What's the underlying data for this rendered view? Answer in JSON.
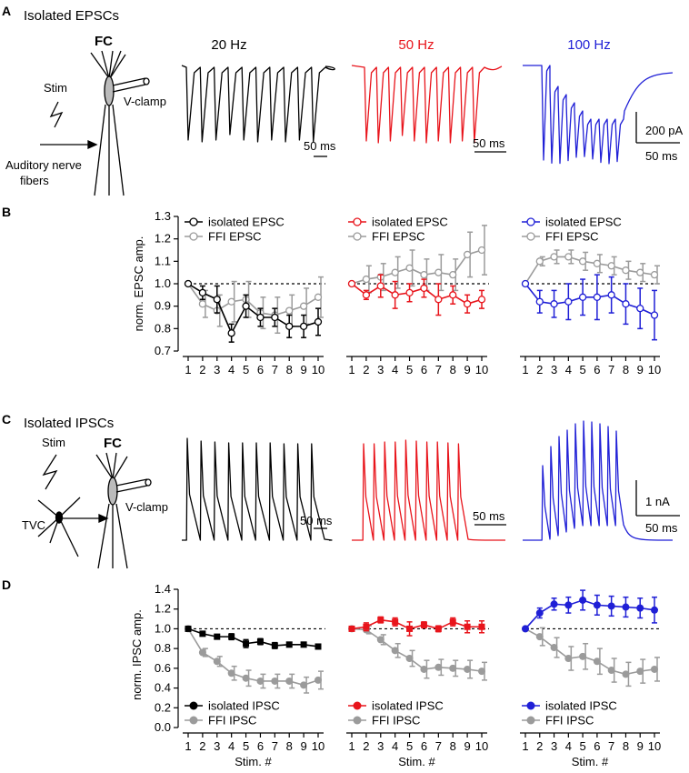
{
  "colors": {
    "black": "#000000",
    "red": "#e8141b",
    "blue": "#1f1fd6",
    "gray": "#9b9b9b",
    "dark": "#111111"
  },
  "panels": {
    "A": "A",
    "B": "B",
    "C": "C",
    "D": "D"
  },
  "panelA": {
    "title": "Isolated EPSCs",
    "fc_label": "FC",
    "stim_label": "Stim",
    "vclamp_label": "V-clamp",
    "input_label_line1": "Auditory nerve",
    "input_label_line2": "fibers",
    "traces": [
      {
        "label": "20 Hz",
        "color": "black",
        "pulses": 10,
        "scale_label": "50 ms"
      },
      {
        "label": "50 Hz",
        "color": "red",
        "pulses": 10,
        "scale_label": "50 ms"
      },
      {
        "label": "100 Hz",
        "color": "blue",
        "pulses": 10,
        "scale_label": "50 ms",
        "amp_scale_label": "200 pA"
      }
    ]
  },
  "panelC": {
    "title": "Isolated IPSCs",
    "fc_label": "FC",
    "stim_label": "Stim",
    "vclamp_label": "V-clamp",
    "input_label": "TVC",
    "traces": [
      {
        "color": "black",
        "pulses": 10,
        "scale_label": "50 ms"
      },
      {
        "color": "red",
        "pulses": 10,
        "scale_label": "50 ms"
      },
      {
        "color": "blue",
        "pulses": 10,
        "scale_label": "50 ms",
        "amp_scale_label": "1 nA"
      }
    ]
  },
  "chart_data": [
    {
      "panel": "B",
      "type": "line",
      "ylabel": "norm. EPSC amp.",
      "xlabel": "",
      "ylim": [
        0.7,
        1.3
      ],
      "yticks": [
        "0.7",
        "0.8",
        "0.9",
        "1.0",
        "1.1",
        "1.2",
        "1.3"
      ],
      "x": [
        "1",
        "2",
        "3",
        "4",
        "5",
        "6",
        "7",
        "8",
        "9",
        "10"
      ],
      "reference_line": 1.0,
      "groups": [
        {
          "frequency": "20 Hz",
          "color": "black",
          "marker": "open",
          "series": [
            {
              "name": "isolated EPSC",
              "values": [
                1.0,
                0.96,
                0.93,
                0.78,
                0.9,
                0.85,
                0.85,
                0.81,
                0.81,
                0.83
              ],
              "errors": [
                0,
                0.03,
                0.06,
                0.04,
                0.05,
                0.04,
                0.04,
                0.05,
                0.05,
                0.06
              ]
            },
            {
              "name": "FFI EPSC",
              "values": [
                1.0,
                0.91,
                0.88,
                0.92,
                0.93,
                0.87,
                0.86,
                0.88,
                0.9,
                0.94
              ],
              "errors": [
                0,
                0.06,
                0.07,
                0.09,
                0.08,
                0.07,
                0.08,
                0.07,
                0.08,
                0.09
              ]
            }
          ]
        },
        {
          "frequency": "50 Hz",
          "color": "red",
          "marker": "open",
          "series": [
            {
              "name": "isolated EPSC",
              "values": [
                1.0,
                0.95,
                0.99,
                0.95,
                0.96,
                0.98,
                0.93,
                0.95,
                0.91,
                0.93
              ],
              "errors": [
                0,
                0.02,
                0.05,
                0.06,
                0.04,
                0.04,
                0.07,
                0.04,
                0.04,
                0.04
              ]
            },
            {
              "name": "FFI EPSC",
              "values": [
                1.0,
                1.02,
                1.03,
                1.05,
                1.07,
                1.04,
                1.05,
                1.04,
                1.13,
                1.15
              ],
              "errors": [
                0,
                0.06,
                0.06,
                0.07,
                0.08,
                0.07,
                0.08,
                0.07,
                0.1,
                0.11
              ]
            }
          ]
        },
        {
          "frequency": "100 Hz",
          "color": "blue",
          "marker": "open",
          "series": [
            {
              "name": "isolated EPSC",
              "values": [
                1.0,
                0.92,
                0.91,
                0.92,
                0.94,
                0.94,
                0.95,
                0.91,
                0.89,
                0.86
              ],
              "errors": [
                0,
                0.05,
                0.06,
                0.08,
                0.08,
                0.1,
                0.08,
                0.09,
                0.09,
                0.11
              ]
            },
            {
              "name": "FFI EPSC",
              "values": [
                1.0,
                1.1,
                1.12,
                1.12,
                1.1,
                1.09,
                1.08,
                1.06,
                1.05,
                1.04
              ],
              "errors": [
                0,
                0.02,
                0.03,
                0.03,
                0.04,
                0.04,
                0.04,
                0.04,
                0.04,
                0.04
              ]
            }
          ]
        }
      ]
    },
    {
      "panel": "D",
      "type": "line",
      "ylabel": "norm. IPSC amp.",
      "xlabel": "Stim. #",
      "ylim": [
        0.0,
        1.4
      ],
      "yticks": [
        "0.0",
        "0.2",
        "0.4",
        "0.6",
        "0.8",
        "1.0",
        "1.2",
        "1.4"
      ],
      "x": [
        "1",
        "2",
        "3",
        "4",
        "5",
        "6",
        "7",
        "8",
        "9",
        "10"
      ],
      "reference_line": 1.0,
      "groups": [
        {
          "frequency": "20 Hz",
          "color": "black",
          "marker": "filled",
          "series": [
            {
              "name": "isolated IPSC",
              "values": [
                1.0,
                0.95,
                0.92,
                0.92,
                0.85,
                0.87,
                0.83,
                0.84,
                0.84,
                0.82
              ],
              "errors": [
                0,
                0.02,
                0.02,
                0.03,
                0.04,
                0.03,
                0.03,
                0.02,
                0.02,
                0.02
              ]
            },
            {
              "name": "FFI IPSC",
              "values": [
                1.0,
                0.76,
                0.67,
                0.55,
                0.5,
                0.47,
                0.47,
                0.47,
                0.43,
                0.48
              ],
              "errors": [
                0,
                0.04,
                0.05,
                0.07,
                0.08,
                0.07,
                0.07,
                0.07,
                0.08,
                0.09
              ]
            }
          ]
        },
        {
          "frequency": "50 Hz",
          "color": "red",
          "marker": "filled",
          "series": [
            {
              "name": "isolated IPSC",
              "values": [
                1.0,
                1.02,
                1.09,
                1.07,
                1.0,
                1.04,
                1.0,
                1.07,
                1.02,
                1.02
              ],
              "errors": [
                0,
                0.04,
                0.03,
                0.04,
                0.07,
                0.03,
                0.03,
                0.04,
                0.06,
                0.06
              ]
            },
            {
              "name": "FFI IPSC",
              "values": [
                1.0,
                0.99,
                0.89,
                0.78,
                0.7,
                0.59,
                0.61,
                0.6,
                0.59,
                0.57
              ],
              "errors": [
                0,
                0.04,
                0.05,
                0.07,
                0.08,
                0.09,
                0.08,
                0.08,
                0.09,
                0.09
              ]
            }
          ]
        },
        {
          "frequency": "100 Hz",
          "color": "blue",
          "marker": "filled",
          "series": [
            {
              "name": "isolated IPSC",
              "values": [
                1.0,
                1.16,
                1.25,
                1.24,
                1.29,
                1.24,
                1.23,
                1.22,
                1.21,
                1.19
              ],
              "errors": [
                0,
                0.05,
                0.06,
                0.08,
                0.1,
                0.1,
                0.1,
                0.1,
                0.1,
                0.13
              ]
            },
            {
              "name": "FFI IPSC",
              "values": [
                1.0,
                0.92,
                0.81,
                0.7,
                0.72,
                0.67,
                0.58,
                0.54,
                0.57,
                0.59
              ],
              "errors": [
                0,
                0.09,
                0.1,
                0.12,
                0.13,
                0.13,
                0.12,
                0.12,
                0.12,
                0.12
              ]
            }
          ]
        }
      ]
    }
  ]
}
